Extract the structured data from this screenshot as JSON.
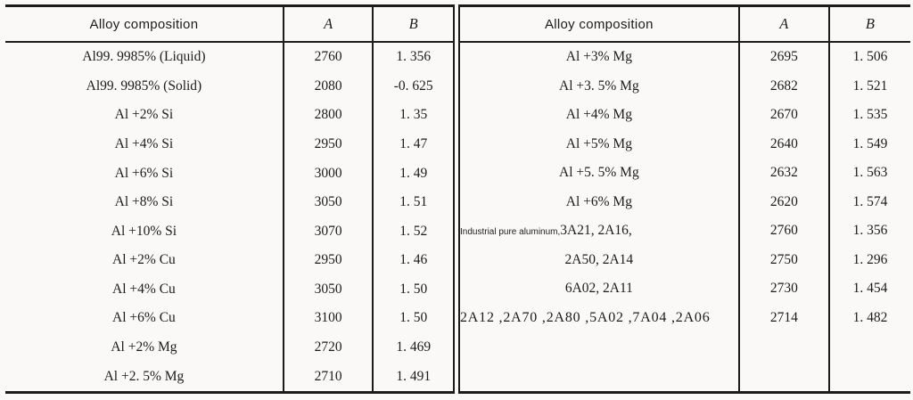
{
  "page": {
    "ink_color": "#1c1c1c",
    "paper_color": "#faf9f7"
  },
  "left_table": {
    "headers": {
      "alloy": "Alloy composition",
      "a": "A",
      "b": "B"
    },
    "rows": [
      {
        "alloy": "Al99. 9985% (Liquid)",
        "a": "2760",
        "b": "1. 356"
      },
      {
        "alloy": "Al99. 9985% (Solid)",
        "a": "2080",
        "b": "-0. 625"
      },
      {
        "alloy": "Al +2% Si",
        "a": "2800",
        "b": "1. 35"
      },
      {
        "alloy": "Al +4% Si",
        "a": "2950",
        "b": "1. 47"
      },
      {
        "alloy": "Al +6% Si",
        "a": "3000",
        "b": "1. 49"
      },
      {
        "alloy": "Al +8% Si",
        "a": "3050",
        "b": "1. 51"
      },
      {
        "alloy": "Al +10% Si",
        "a": "3070",
        "b": "1. 52"
      },
      {
        "alloy": "Al +2% Cu",
        "a": "2950",
        "b": "1. 46"
      },
      {
        "alloy": "Al +4% Cu",
        "a": "3050",
        "b": "1. 50"
      },
      {
        "alloy": "Al +6% Cu",
        "a": "3100",
        "b": "1. 50"
      },
      {
        "alloy": "Al +2% Mg",
        "a": "2720",
        "b": "1. 469"
      },
      {
        "alloy": "Al +2. 5% Mg",
        "a": "2710",
        "b": "1. 491"
      }
    ]
  },
  "right_table": {
    "headers": {
      "alloy": "Alloy composition",
      "a": "A",
      "b": "B"
    },
    "rows": [
      {
        "alloy": "Al +3% Mg",
        "a": "2695",
        "b": "1. 506"
      },
      {
        "alloy": "Al +3. 5% Mg",
        "a": "2682",
        "b": "1. 521"
      },
      {
        "alloy": "Al +4% Mg",
        "a": "2670",
        "b": "1. 535"
      },
      {
        "alloy": "Al +5% Mg",
        "a": "2640",
        "b": "1. 549"
      },
      {
        "alloy": "Al +5. 5% Mg",
        "a": "2632",
        "b": "1. 563"
      },
      {
        "alloy": "Al +6% Mg",
        "a": "2620",
        "b": "1. 574"
      },
      {
        "alloy_small": "Industrial pure aluminum,",
        "alloy": "3A21,  2A16,",
        "a": "2760",
        "b": "1. 356"
      },
      {
        "alloy": "2A50,  2A14",
        "a": "2750",
        "b": "1. 296"
      },
      {
        "alloy": "6A02,  2A11",
        "a": "2730",
        "b": "1. 454"
      },
      {
        "alloy": "2A12 ,2A70 ,2A80 ,5A02 ,7A04 ,2A06",
        "a": "2714",
        "b": "1. 482"
      }
    ]
  }
}
